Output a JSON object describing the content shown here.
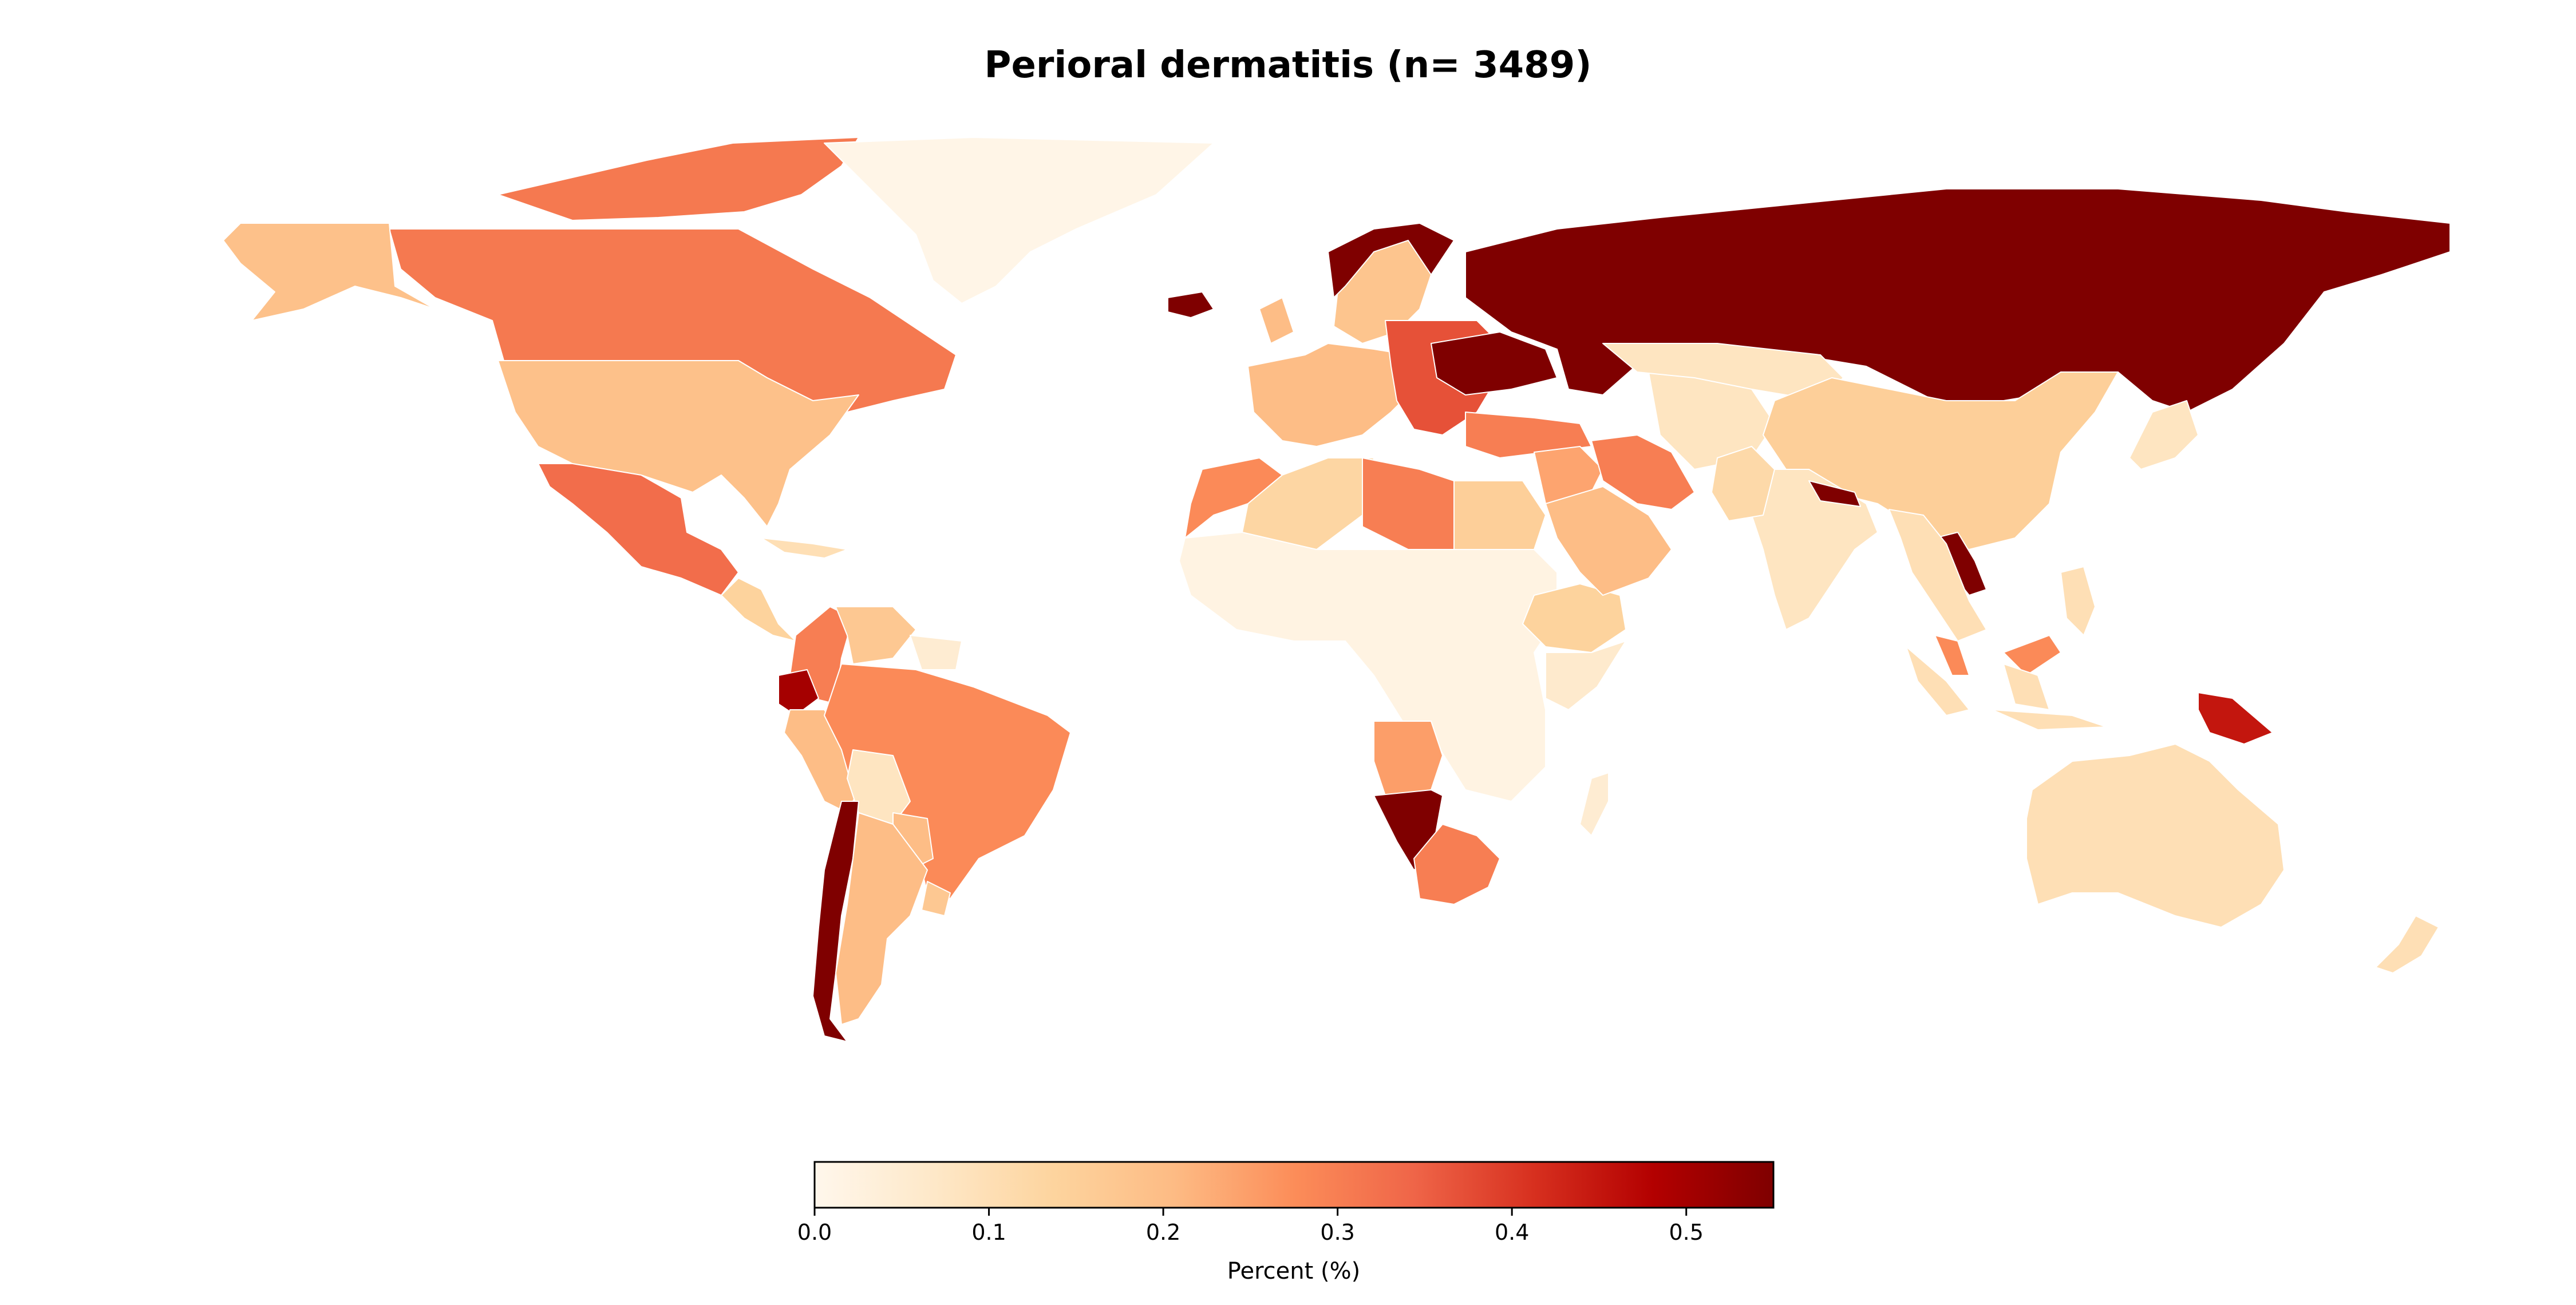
{
  "title": "Perioral dermatitis (n= 3489)",
  "colorbar": {
    "label": "Percent (%)",
    "min": 0.0,
    "max": 0.55,
    "ticks": [
      "0.0",
      "0.1",
      "0.2",
      "0.3",
      "0.4",
      "0.5"
    ],
    "tick_values": [
      0.0,
      0.1,
      0.2,
      0.3,
      0.4,
      0.5
    ],
    "colormap": "OrRd",
    "stops": [
      "#fff7ec",
      "#fee8c8",
      "#fdd49e",
      "#fdbb84",
      "#fc8d59",
      "#ef6548",
      "#d7301f",
      "#b30000",
      "#7f0000"
    ]
  },
  "map_data": {
    "type": "choropleth",
    "projection": "equirectangular",
    "unit": "Percent (%)",
    "regions": [
      {
        "name": "Canada",
        "value": 0.31
      },
      {
        "name": "Alaska",
        "value": 0.19
      },
      {
        "name": "Greenland",
        "value": 0.01
      },
      {
        "name": "United States",
        "value": 0.19
      },
      {
        "name": "Mexico",
        "value": 0.33
      },
      {
        "name": "Central America",
        "value": 0.14
      },
      {
        "name": "Caribbean",
        "value": 0.1
      },
      {
        "name": "Colombia",
        "value": 0.3
      },
      {
        "name": "Venezuela",
        "value": 0.17
      },
      {
        "name": "Guianas",
        "value": 0.05
      },
      {
        "name": "Ecuador",
        "value": 0.5
      },
      {
        "name": "Peru",
        "value": 0.2
      },
      {
        "name": "Brazil",
        "value": 0.28
      },
      {
        "name": "Bolivia",
        "value": 0.08
      },
      {
        "name": "Paraguay",
        "value": 0.2
      },
      {
        "name": "Chile",
        "value": 0.55
      },
      {
        "name": "Argentina",
        "value": 0.2
      },
      {
        "name": "Uruguay",
        "value": 0.17
      },
      {
        "name": "Western Europe",
        "value": 0.2
      },
      {
        "name": "Scandinavia",
        "value": 0.18
      },
      {
        "name": "Eastern Europe",
        "value": 0.37
      },
      {
        "name": "Ukraine",
        "value": 0.55
      },
      {
        "name": "Russia",
        "value": 0.55
      },
      {
        "name": "Iceland",
        "value": 0.55
      },
      {
        "name": "Morocco",
        "value": 0.28
      },
      {
        "name": "Algeria",
        "value": 0.13
      },
      {
        "name": "Libya",
        "value": 0.3
      },
      {
        "name": "Egypt",
        "value": 0.15
      },
      {
        "name": "Sahel and Central Africa",
        "value": 0.02
      },
      {
        "name": "Ethiopia",
        "value": 0.14
      },
      {
        "name": "East Africa",
        "value": 0.06
      },
      {
        "name": "Angola",
        "value": 0.25
      },
      {
        "name": "Namibia",
        "value": 0.55
      },
      {
        "name": "South Africa",
        "value": 0.3
      },
      {
        "name": "Madagascar",
        "value": 0.05
      },
      {
        "name": "Turkey",
        "value": 0.3
      },
      {
        "name": "Middle East",
        "value": 0.24
      },
      {
        "name": "Iran",
        "value": 0.3
      },
      {
        "name": "Saudi Arabia",
        "value": 0.2
      },
      {
        "name": "Central Asia",
        "value": 0.08
      },
      {
        "name": "Kazakhstan",
        "value": 0.08
      },
      {
        "name": "China",
        "value": 0.15
      },
      {
        "name": "India",
        "value": 0.08
      },
      {
        "name": "Pakistan",
        "value": 0.12
      },
      {
        "name": "Nepal",
        "value": 0.55
      },
      {
        "name": "Laos",
        "value": 0.55
      },
      {
        "name": "Southeast Asia",
        "value": 0.1
      },
      {
        "name": "Malaysia",
        "value": 0.28
      },
      {
        "name": "Indonesia",
        "value": 0.1
      },
      {
        "name": "Philippines",
        "value": 0.1
      },
      {
        "name": "Japan",
        "value": 0.08
      },
      {
        "name": "Papua New Guinea",
        "value": 0.45
      },
      {
        "name": "Australia",
        "value": 0.1
      },
      {
        "name": "New Zealand",
        "value": 0.1
      }
    ]
  }
}
